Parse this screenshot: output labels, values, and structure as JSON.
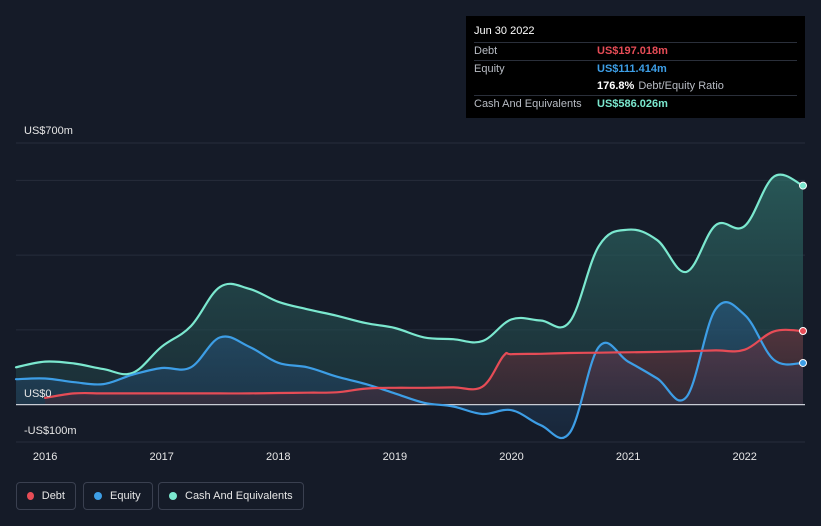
{
  "tooltip": {
    "date": "Jun 30 2022",
    "rows": [
      {
        "label": "Debt",
        "value": "US$197.018m",
        "color": "#e64c56"
      },
      {
        "label": "Equity",
        "value": "US$111.414m",
        "color": "#3d9ee6"
      }
    ],
    "ratio_value": "176.8%",
    "ratio_label": "Debt/Equity Ratio",
    "cash_label": "Cash And Equivalents",
    "cash_value": "US$586.026m",
    "cash_color": "#7be8cf"
  },
  "chart_data": {
    "type": "area",
    "y_tick_labels": {
      "top": "US$700m",
      "zero": "US$0",
      "bottom": "-US$100m"
    },
    "ylim": [
      -100,
      700
    ],
    "xlim": [
      2015.75,
      2022.5
    ],
    "x_ticks": [
      "2016",
      "2017",
      "2018",
      "2019",
      "2020",
      "2021",
      "2022"
    ],
    "grid": true,
    "legend_position": "bottom-left",
    "series": [
      {
        "name": "Debt",
        "color": "#e64c56",
        "points": [
          [
            2016.0,
            18
          ],
          [
            2016.25,
            30
          ],
          [
            2016.5,
            30
          ],
          [
            2016.75,
            30
          ],
          [
            2017.0,
            30
          ],
          [
            2017.25,
            30
          ],
          [
            2017.5,
            30
          ],
          [
            2017.75,
            30
          ],
          [
            2018.0,
            31
          ],
          [
            2018.25,
            32
          ],
          [
            2018.5,
            33
          ],
          [
            2018.75,
            43
          ],
          [
            2019.0,
            45
          ],
          [
            2019.25,
            45
          ],
          [
            2019.5,
            46
          ],
          [
            2019.75,
            48
          ],
          [
            2019.93,
            130
          ],
          [
            2020.0,
            135
          ],
          [
            2020.25,
            136
          ],
          [
            2020.5,
            138
          ],
          [
            2020.75,
            139
          ],
          [
            2021.0,
            140
          ],
          [
            2021.25,
            141
          ],
          [
            2021.5,
            143
          ],
          [
            2021.75,
            145
          ],
          [
            2022.0,
            147
          ],
          [
            2022.25,
            196
          ],
          [
            2022.5,
            197.018
          ]
        ]
      },
      {
        "name": "Equity",
        "color": "#3d9ee6",
        "points": [
          [
            2015.75,
            68
          ],
          [
            2016.0,
            70
          ],
          [
            2016.25,
            60
          ],
          [
            2016.5,
            55
          ],
          [
            2016.75,
            80
          ],
          [
            2017.0,
            98
          ],
          [
            2017.25,
            100
          ],
          [
            2017.5,
            180
          ],
          [
            2017.75,
            155
          ],
          [
            2018.0,
            112
          ],
          [
            2018.25,
            100
          ],
          [
            2018.5,
            75
          ],
          [
            2018.75,
            55
          ],
          [
            2019.0,
            30
          ],
          [
            2019.25,
            5
          ],
          [
            2019.5,
            -5
          ],
          [
            2019.75,
            -25
          ],
          [
            2020.0,
            -15
          ],
          [
            2020.25,
            -55
          ],
          [
            2020.5,
            -75
          ],
          [
            2020.75,
            155
          ],
          [
            2021.0,
            115
          ],
          [
            2021.25,
            70
          ],
          [
            2021.5,
            20
          ],
          [
            2021.75,
            255
          ],
          [
            2022.0,
            240
          ],
          [
            2022.25,
            120
          ],
          [
            2022.5,
            111.414
          ]
        ]
      },
      {
        "name": "Cash And Equivalents",
        "color": "#7be8cf",
        "points": [
          [
            2015.75,
            100
          ],
          [
            2016.0,
            115
          ],
          [
            2016.25,
            110
          ],
          [
            2016.5,
            95
          ],
          [
            2016.75,
            85
          ],
          [
            2017.0,
            155
          ],
          [
            2017.25,
            210
          ],
          [
            2017.5,
            315
          ],
          [
            2017.75,
            310
          ],
          [
            2018.0,
            275
          ],
          [
            2018.25,
            255
          ],
          [
            2018.5,
            238
          ],
          [
            2018.75,
            218
          ],
          [
            2019.0,
            205
          ],
          [
            2019.25,
            180
          ],
          [
            2019.5,
            175
          ],
          [
            2019.75,
            170
          ],
          [
            2020.0,
            228
          ],
          [
            2020.25,
            225
          ],
          [
            2020.5,
            222
          ],
          [
            2020.75,
            425
          ],
          [
            2021.0,
            468
          ],
          [
            2021.25,
            440
          ],
          [
            2021.5,
            355
          ],
          [
            2021.75,
            480
          ],
          [
            2022.0,
            478
          ],
          [
            2022.25,
            610
          ],
          [
            2022.5,
            586.026
          ]
        ]
      }
    ]
  }
}
